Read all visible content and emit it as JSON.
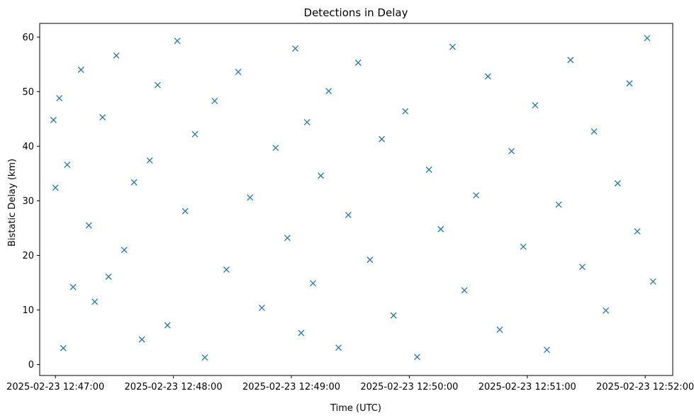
{
  "chart_data": {
    "type": "scatter",
    "title": "Detections in Delay",
    "xlabel": "Time (UTC)",
    "ylabel": "Bistatic Delay (km)",
    "x_tick_labels": [
      "2025-02-23 12:47:00",
      "2025-02-23 12:48:00",
      "2025-02-23 12:49:00",
      "2025-02-23 12:50:00",
      "2025-02-23 12:51:00",
      "2025-02-23 12:52:00"
    ],
    "x_ticks": [
      "12:47:00",
      "12:48:00",
      "12:49:00",
      "12:50:00",
      "12:51:00",
      "12:52:00"
    ],
    "xlim": [
      "12:46:52",
      "12:52:14"
    ],
    "y_ticks": [
      0,
      10,
      20,
      30,
      40,
      50,
      60
    ],
    "y_tick_labels": [
      "0",
      "10",
      "20",
      "30",
      "40",
      "50",
      "60"
    ],
    "ylim": [
      -2,
      62.5
    ],
    "grid": false,
    "marker": "x",
    "colors": {
      "series": "#1f77b4",
      "axes": "#000000",
      "background": "#ffffff"
    },
    "series": [
      {
        "x": [
          "12:46:59",
          "12:47:00",
          "12:47:02",
          "12:47:04",
          "12:47:06",
          "12:47:09",
          "12:47:13",
          "12:47:17",
          "12:47:20",
          "12:47:24",
          "12:47:27",
          "12:47:31",
          "12:47:35",
          "12:47:40",
          "12:47:44",
          "12:47:48",
          "12:47:52",
          "12:47:57",
          "12:48:02",
          "12:48:06",
          "12:48:11",
          "12:48:16",
          "12:48:21",
          "12:48:27",
          "12:48:33",
          "12:48:39",
          "12:48:45",
          "12:48:52",
          "12:48:58",
          "12:49:02",
          "12:49:05",
          "12:49:08",
          "12:49:11",
          "12:49:15",
          "12:49:19",
          "12:49:24",
          "12:49:29",
          "12:49:34",
          "12:49:40",
          "12:49:46",
          "12:49:52",
          "12:49:58",
          "12:50:04",
          "12:50:10",
          "12:50:16",
          "12:50:22",
          "12:50:28",
          "12:50:34",
          "12:50:40",
          "12:50:46",
          "12:50:52",
          "12:50:58",
          "12:51:04",
          "12:51:10",
          "12:51:16",
          "12:51:22",
          "12:51:28",
          "12:51:34",
          "12:51:40",
          "12:51:46",
          "12:51:52",
          "12:51:56",
          "12:52:01",
          "12:52:04"
        ],
        "y": [
          44.8,
          32.4,
          48.8,
          3.0,
          36.6,
          14.2,
          54.0,
          25.5,
          11.5,
          45.3,
          16.1,
          56.6,
          21.0,
          33.4,
          4.6,
          37.4,
          51.2,
          7.2,
          59.3,
          28.1,
          42.2,
          1.3,
          48.3,
          17.4,
          53.6,
          30.6,
          10.4,
          39.7,
          23.2,
          57.9,
          5.8,
          44.4,
          14.9,
          34.6,
          50.1,
          3.1,
          27.4,
          55.3,
          19.2,
          41.3,
          9.0,
          46.4,
          1.4,
          35.7,
          24.8,
          58.2,
          13.6,
          31.0,
          52.8,
          6.4,
          39.1,
          21.6,
          47.5,
          2.7,
          29.3,
          55.8,
          17.9,
          42.7,
          9.9,
          33.2,
          51.5,
          24.4,
          59.8,
          15.2
        ]
      }
    ]
  }
}
